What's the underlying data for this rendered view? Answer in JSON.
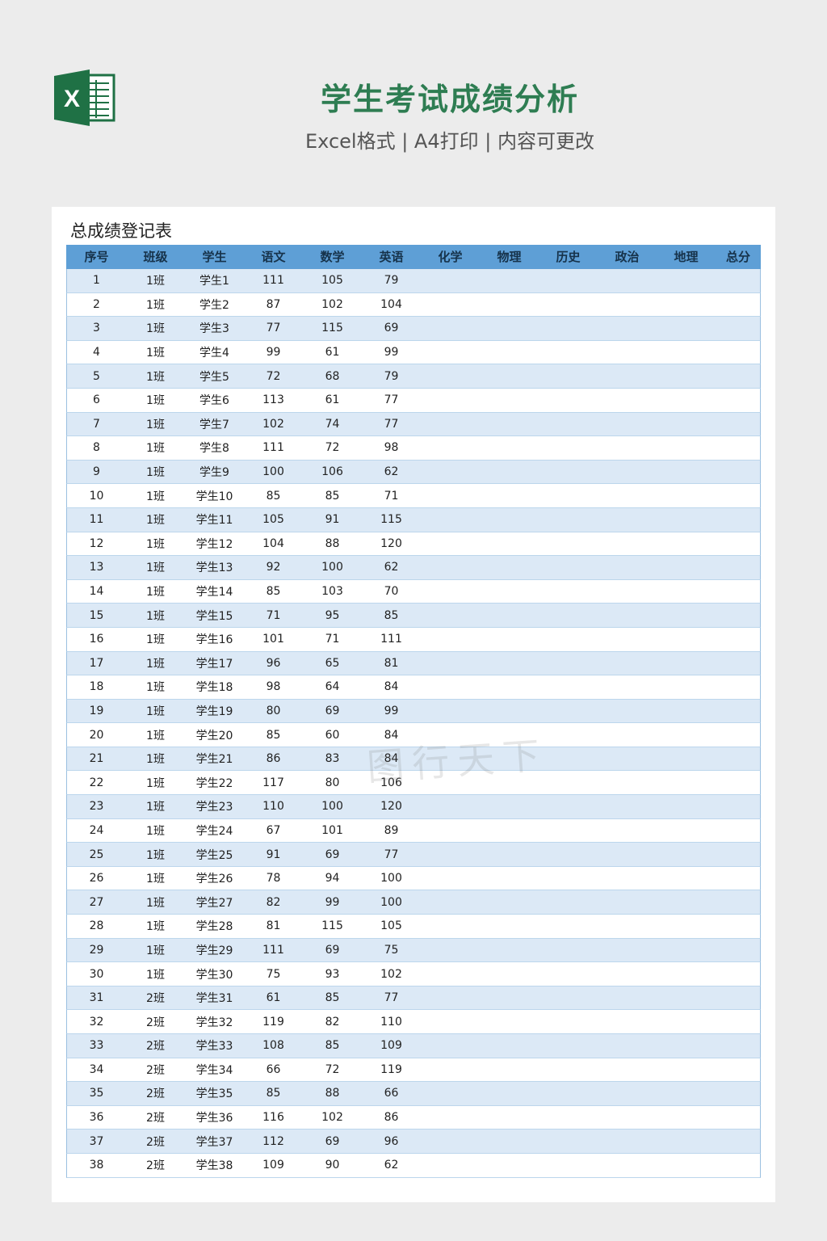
{
  "header": {
    "title": "学生考试成绩分析",
    "subtitle": "Excel格式 | A4打印 | 内容可更改",
    "logo_letter": "X"
  },
  "sheet": {
    "title": "总成绩登记表",
    "columns": [
      "序号",
      "班级",
      "学生",
      "语文",
      "数学",
      "英语",
      "化学",
      "物理",
      "历史",
      "政治",
      "地理",
      "总分"
    ],
    "rows": [
      [
        "1",
        "1班",
        "学生1",
        "111",
        "105",
        "79"
      ],
      [
        "2",
        "1班",
        "学生2",
        "87",
        "102",
        "104"
      ],
      [
        "3",
        "1班",
        "学生3",
        "77",
        "115",
        "69"
      ],
      [
        "4",
        "1班",
        "学生4",
        "99",
        "61",
        "99"
      ],
      [
        "5",
        "1班",
        "学生5",
        "72",
        "68",
        "79"
      ],
      [
        "6",
        "1班",
        "学生6",
        "113",
        "61",
        "77"
      ],
      [
        "7",
        "1班",
        "学生7",
        "102",
        "74",
        "77"
      ],
      [
        "8",
        "1班",
        "学生8",
        "111",
        "72",
        "98"
      ],
      [
        "9",
        "1班",
        "学生9",
        "100",
        "106",
        "62"
      ],
      [
        "10",
        "1班",
        "学生10",
        "85",
        "85",
        "71"
      ],
      [
        "11",
        "1班",
        "学生11",
        "105",
        "91",
        "115"
      ],
      [
        "12",
        "1班",
        "学生12",
        "104",
        "88",
        "120"
      ],
      [
        "13",
        "1班",
        "学生13",
        "92",
        "100",
        "62"
      ],
      [
        "14",
        "1班",
        "学生14",
        "85",
        "103",
        "70"
      ],
      [
        "15",
        "1班",
        "学生15",
        "71",
        "95",
        "85"
      ],
      [
        "16",
        "1班",
        "学生16",
        "101",
        "71",
        "111"
      ],
      [
        "17",
        "1班",
        "学生17",
        "96",
        "65",
        "81"
      ],
      [
        "18",
        "1班",
        "学生18",
        "98",
        "64",
        "84"
      ],
      [
        "19",
        "1班",
        "学生19",
        "80",
        "69",
        "99"
      ],
      [
        "20",
        "1班",
        "学生20",
        "85",
        "60",
        "84"
      ],
      [
        "21",
        "1班",
        "学生21",
        "86",
        "83",
        "84"
      ],
      [
        "22",
        "1班",
        "学生22",
        "117",
        "80",
        "106"
      ],
      [
        "23",
        "1班",
        "学生23",
        "110",
        "100",
        "120"
      ],
      [
        "24",
        "1班",
        "学生24",
        "67",
        "101",
        "89"
      ],
      [
        "25",
        "1班",
        "学生25",
        "91",
        "69",
        "77"
      ],
      [
        "26",
        "1班",
        "学生26",
        "78",
        "94",
        "100"
      ],
      [
        "27",
        "1班",
        "学生27",
        "82",
        "99",
        "100"
      ],
      [
        "28",
        "1班",
        "学生28",
        "81",
        "115",
        "105"
      ],
      [
        "29",
        "1班",
        "学生29",
        "111",
        "69",
        "75"
      ],
      [
        "30",
        "1班",
        "学生30",
        "75",
        "93",
        "102"
      ],
      [
        "31",
        "2班",
        "学生31",
        "61",
        "85",
        "77"
      ],
      [
        "32",
        "2班",
        "学生32",
        "119",
        "82",
        "110"
      ],
      [
        "33",
        "2班",
        "学生33",
        "108",
        "85",
        "109"
      ],
      [
        "34",
        "2班",
        "学生34",
        "66",
        "72",
        "119"
      ],
      [
        "35",
        "2班",
        "学生35",
        "85",
        "88",
        "66"
      ],
      [
        "36",
        "2班",
        "学生36",
        "116",
        "102",
        "86"
      ],
      [
        "37",
        "2班",
        "学生37",
        "112",
        "69",
        "96"
      ],
      [
        "38",
        "2班",
        "学生38",
        "109",
        "90",
        "62"
      ]
    ]
  },
  "colors": {
    "title_green": "#2e7d52",
    "header_blue": "#5e9fd6",
    "row_alt": "#dce9f6",
    "excel_green": "#1f7145"
  }
}
